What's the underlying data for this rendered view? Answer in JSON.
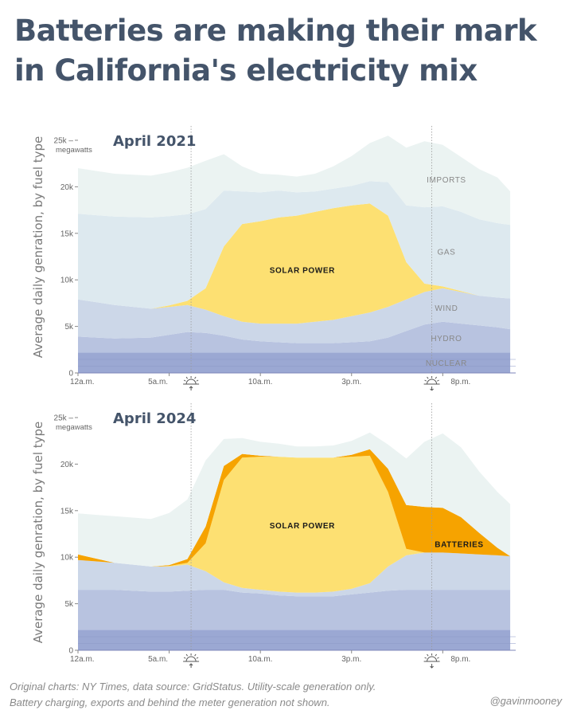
{
  "title": "Batteries are making their mark in California's electricity mix",
  "y_axis_title": "Average daily genration, by fuel type",
  "footer": {
    "line1": "Original charts: NY Times, data source: GridStatus. Utility-scale generation only.",
    "line2": "Battery charging, exports and behind the meter generation not shown.",
    "handle": "@gavinmooney"
  },
  "colors": {
    "title": "#44546a",
    "nuclear": "#9ba8d3",
    "hydro": "#b8c3e0",
    "wind": "#ccd7e8",
    "gas": "#dde9ef",
    "imports": "#ebf3f2",
    "solar": "#fde072",
    "batteries": "#f6a300"
  },
  "chart_data": [
    {
      "type": "area",
      "stacked": true,
      "title": "April 2021",
      "ylabel": "Average daily genration, by fuel type",
      "y_unit": "megawatts",
      "ylim": [
        0,
        25000
      ],
      "xlim": [
        0,
        24
      ],
      "y_ticks": [
        0,
        5000,
        10000,
        15000,
        20000,
        25000
      ],
      "y_tick_labels": [
        "0",
        "5k",
        "10k",
        "15k",
        "20k",
        "25k –"
      ],
      "x_ticks": [
        0,
        5,
        10,
        15,
        20
      ],
      "x_tick_labels": [
        "12a.m.",
        "5a.m.",
        "10a.m.",
        "3p.m.",
        "8p.m."
      ],
      "sunrise_hour": 6.2,
      "sunset_hour": 19.4,
      "x": [
        0,
        2,
        4,
        5,
        6,
        7,
        8,
        9,
        10,
        11,
        12,
        13,
        14,
        15,
        16,
        17,
        18,
        19,
        20,
        21,
        22,
        23,
        23.7
      ],
      "series": [
        {
          "name": "NUCLEAR",
          "label": "NUCLEAR",
          "values": [
            2200,
            2200,
            2200,
            2200,
            2200,
            2200,
            2200,
            2200,
            2200,
            2200,
            2200,
            2200,
            2200,
            2200,
            2200,
            2200,
            2200,
            2200,
            2200,
            2200,
            2200,
            2200,
            2200
          ]
        },
        {
          "name": "HYDRO",
          "label": "HYDRO",
          "values": [
            1700,
            1500,
            1600,
            1900,
            2200,
            2100,
            1800,
            1400,
            1200,
            1100,
            1000,
            1000,
            1000,
            1100,
            1200,
            1600,
            2300,
            3000,
            3300,
            3100,
            2900,
            2700,
            2500
          ]
        },
        {
          "name": "WIND",
          "label": "WIND",
          "values": [
            4000,
            3600,
            3100,
            3000,
            2900,
            2500,
            2100,
            1900,
            1900,
            2000,
            2100,
            2300,
            2500,
            2800,
            3100,
            3300,
            3400,
            3500,
            3600,
            3400,
            3200,
            3200,
            3300
          ]
        },
        {
          "name": "SOLAR POWER",
          "label": "SOLAR POWER",
          "values": [
            0,
            0,
            0,
            150,
            450,
            2300,
            7500,
            10500,
            11000,
            11400,
            11600,
            11800,
            12000,
            11900,
            11700,
            9800,
            4000,
            900,
            200,
            100,
            0,
            0,
            0
          ]
        },
        {
          "name": "GAS",
          "label": "GAS",
          "values": [
            9200,
            9500,
            9800,
            9600,
            9300,
            8500,
            6000,
            3500,
            3100,
            2900,
            2500,
            2200,
            2100,
            2100,
            2400,
            3600,
            6100,
            8200,
            8600,
            8500,
            8200,
            8000,
            7900
          ]
        },
        {
          "name": "IMPORTS",
          "label": "IMPORTS",
          "values": [
            4900,
            4600,
            4500,
            4700,
            5000,
            5200,
            3900,
            2700,
            2000,
            1700,
            1700,
            1900,
            2400,
            3200,
            4100,
            5000,
            6200,
            7100,
            6600,
            5900,
            5400,
            4900,
            3600
          ]
        }
      ]
    },
    {
      "type": "area",
      "stacked": true,
      "title": "April 2024",
      "ylabel": "Average daily genration, by fuel type",
      "y_unit": "megawatts",
      "ylim": [
        0,
        25000
      ],
      "xlim": [
        0,
        24
      ],
      "y_ticks": [
        0,
        5000,
        10000,
        15000,
        20000,
        25000
      ],
      "y_tick_labels": [
        "0",
        "5k",
        "10k",
        "15k",
        "20k",
        "25k –"
      ],
      "x_ticks": [
        0,
        5,
        10,
        15,
        20
      ],
      "x_tick_labels": [
        "12a.m.",
        "5a.m.",
        "10a.m.",
        "3p.m.",
        "8p.m."
      ],
      "sunrise_hour": 6.2,
      "sunset_hour": 19.4,
      "x": [
        0,
        2,
        4,
        5,
        6,
        7,
        8,
        9,
        10,
        11,
        12,
        13,
        14,
        15,
        16,
        17,
        18,
        19,
        20,
        21,
        22,
        23,
        23.7
      ],
      "series": [
        {
          "name": "NUCLEAR",
          "label": "",
          "values": [
            2200,
            2200,
            2200,
            2200,
            2200,
            2200,
            2200,
            2200,
            2200,
            2200,
            2200,
            2200,
            2200,
            2200,
            2200,
            2200,
            2200,
            2200,
            2200,
            2200,
            2200,
            2200,
            2200
          ]
        },
        {
          "name": "HYDRO",
          "label": "",
          "values": [
            4300,
            4300,
            4100,
            4100,
            4200,
            4300,
            4300,
            4000,
            3900,
            3700,
            3600,
            3600,
            3600,
            3800,
            4000,
            4200,
            4300,
            4300,
            4300,
            4300,
            4300,
            4300,
            4300
          ]
        },
        {
          "name": "WIND",
          "label": "",
          "values": [
            3200,
            2900,
            2700,
            2700,
            2800,
            2000,
            800,
            500,
            400,
            400,
            400,
            400,
            500,
            600,
            1000,
            2600,
            3700,
            4000,
            4000,
            3900,
            3800,
            3700,
            3600
          ]
        },
        {
          "name": "SOLAR POWER",
          "label": "SOLAR POWER",
          "values": [
            0,
            0,
            0,
            50,
            200,
            3000,
            11000,
            14000,
            14300,
            14500,
            14500,
            14500,
            14400,
            14200,
            13700,
            8000,
            700,
            0,
            0,
            0,
            0,
            0,
            0
          ]
        },
        {
          "name": "BATTERIES",
          "label": "BATTERIES",
          "values": [
            600,
            0,
            0,
            100,
            400,
            1800,
            1500,
            400,
            100,
            0,
            0,
            0,
            0,
            200,
            700,
            2500,
            4700,
            4900,
            4800,
            3900,
            2300,
            800,
            0
          ]
        },
        {
          "name": "GAS",
          "label": "",
          "values": [
            0,
            0,
            0,
            0,
            0,
            0,
            0,
            0,
            0,
            0,
            0,
            0,
            0,
            0,
            0,
            0,
            0,
            0,
            0,
            0,
            0,
            0,
            0
          ]
        },
        {
          "name": "IMPORTS",
          "label": "",
          "values": [
            4400,
            5000,
            5100,
            5600,
            6400,
            7100,
            2900,
            1700,
            1500,
            1400,
            1200,
            1200,
            1300,
            1500,
            1800,
            2600,
            5000,
            7000,
            8000,
            7500,
            6600,
            6000,
            5600
          ]
        }
      ]
    }
  ]
}
